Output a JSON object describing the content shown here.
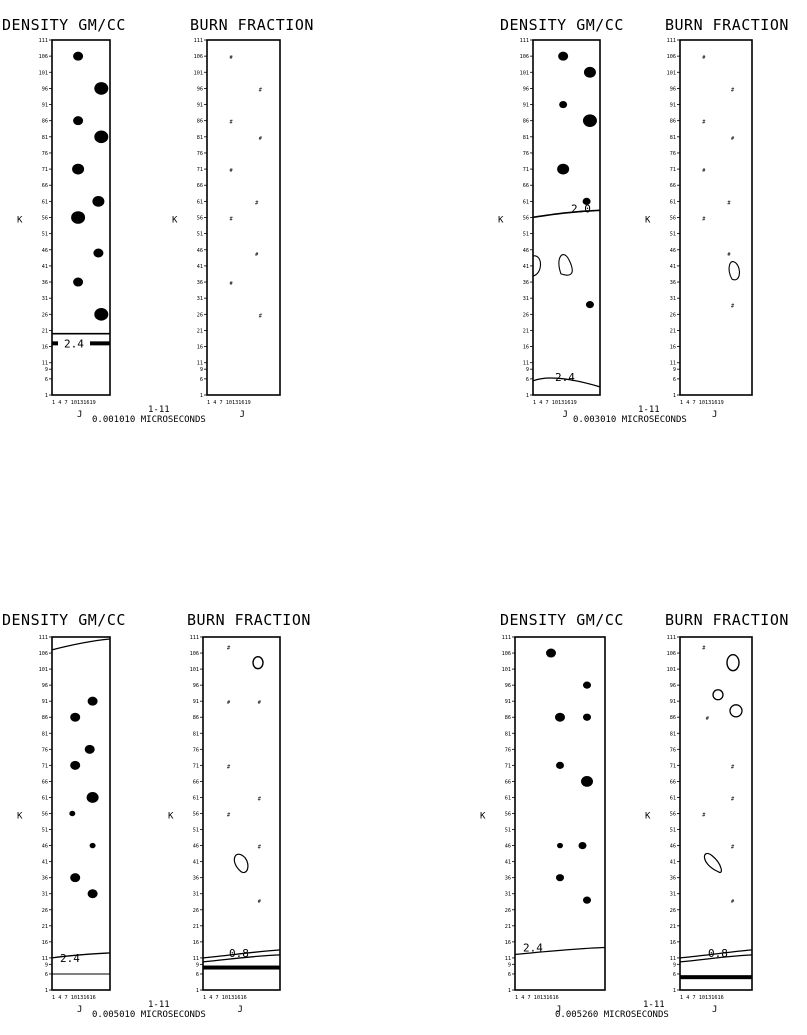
{
  "panels": [
    {
      "density_title": "DENSITY GM/CC",
      "burn_title": "BURN FRACTION",
      "k_axis_label": "K",
      "j_axis_label": "J",
      "j_ticks": "1 4 7 10131619",
      "index_label": "1-11",
      "time_label": "0.001010 MICROSECONDS",
      "density_contour_labels": [
        "2.4"
      ],
      "burn_contour_labels": []
    },
    {
      "density_title": "DENSITY GM/CC",
      "burn_title": "BURN FRACTION",
      "k_axis_label": "K",
      "j_axis_label": "J",
      "j_ticks": "1 4 7 10131619",
      "index_label": "1-11",
      "time_label": "0.003010 MICROSECONDS",
      "density_contour_labels": [
        "2.0",
        "2.4"
      ],
      "burn_contour_labels": []
    },
    {
      "density_title": "DENSITY GM/CC",
      "burn_title": "BURN FRACTION",
      "k_axis_label": "K",
      "j_axis_label": "J",
      "j_ticks": "1 4 7 10131616",
      "index_label": "1-11",
      "time_label": "0.005010 MICROSECONDS",
      "density_contour_labels": [
        "2.4"
      ],
      "burn_contour_labels": [
        "0.8"
      ]
    },
    {
      "density_title": "DENSITY GM/CC",
      "burn_title": "BURN FRACTION",
      "k_axis_label": "K",
      "j_axis_label": "J",
      "j_ticks": "1 4 7 10131616",
      "index_label": "1-11",
      "time_label": "0.005260 MICROSECONDS",
      "density_contour_labels": [
        "2.4"
      ],
      "burn_contour_labels": [
        "0.8"
      ]
    }
  ],
  "k_ticks": [
    "111",
    "106",
    "101",
    "96",
    "91",
    "86",
    "81",
    "76",
    "71",
    "66",
    "61",
    "56",
    "51",
    "46",
    "41",
    "36",
    "31",
    "26",
    "21",
    "16",
    "11",
    "9",
    "6",
    "1"
  ]
}
